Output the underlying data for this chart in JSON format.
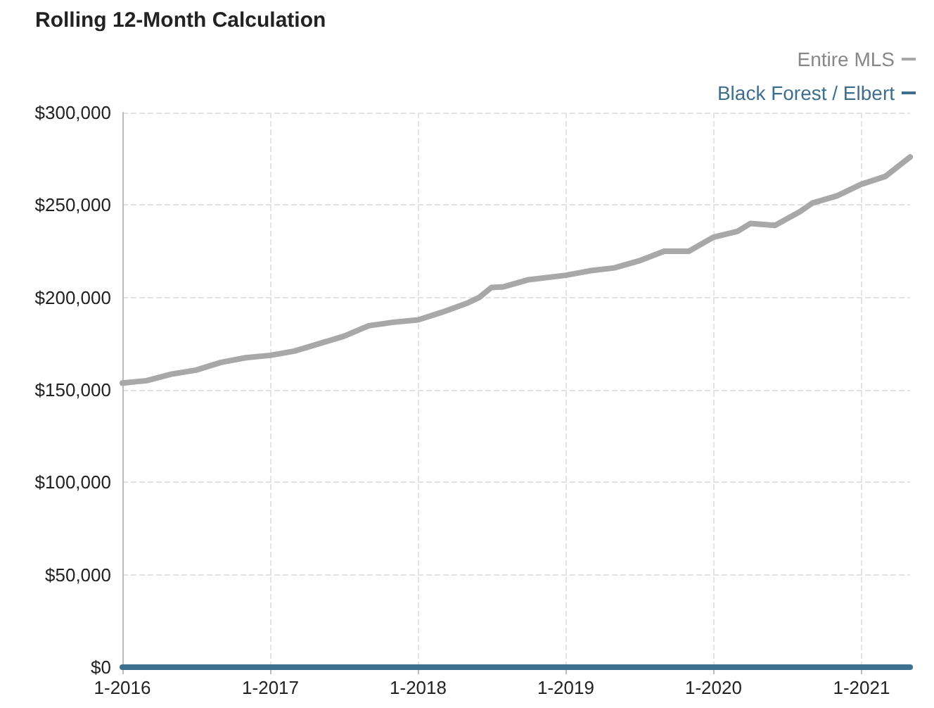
{
  "chart_data": {
    "type": "line",
    "title": "Rolling 12-Month Calculation",
    "x": [
      "2016-01",
      "2016-03",
      "2016-05",
      "2016-07",
      "2016-09",
      "2016-11",
      "2017-01",
      "2017-03",
      "2017-05",
      "2017-07",
      "2017-09",
      "2017-11",
      "2018-01",
      "2018-03",
      "2018-05",
      "2018-06",
      "2018-07",
      "2018-08",
      "2018-10",
      "2019-01",
      "2019-03",
      "2019-05",
      "2019-07",
      "2019-09",
      "2019-11",
      "2020-01",
      "2020-03",
      "2020-04",
      "2020-06",
      "2020-08",
      "2020-09",
      "2020-11",
      "2021-01",
      "2021-03",
      "2021-05"
    ],
    "series": [
      {
        "name": "Entire MLS",
        "color": "#a8a8a8",
        "values": [
          153700,
          155000,
          158500,
          160700,
          164900,
          167400,
          168700,
          171000,
          175000,
          179000,
          184700,
          186600,
          187900,
          192000,
          196800,
          200000,
          205400,
          205800,
          209600,
          212000,
          214400,
          216000,
          219800,
          225000,
          225000,
          232600,
          235800,
          240000,
          239000,
          246300,
          251000,
          254900,
          261300,
          265500,
          276000
        ]
      },
      {
        "name": "Black Forest / Elbert",
        "color": "#3f6f8e",
        "values": [
          0,
          0,
          0,
          0,
          0,
          0,
          0,
          0,
          0,
          0,
          0,
          0,
          0,
          0,
          0,
          0,
          0,
          0,
          0,
          0,
          0,
          0,
          0,
          0,
          0,
          0,
          0,
          0,
          0,
          0,
          0,
          0,
          0,
          0,
          0
        ]
      }
    ],
    "xlim": [
      "2016-01",
      "2021-05"
    ],
    "xticks": [
      {
        "value": "2016-01",
        "label": "1-2016"
      },
      {
        "value": "2017-01",
        "label": "1-2017"
      },
      {
        "value": "2018-01",
        "label": "1-2018"
      },
      {
        "value": "2019-01",
        "label": "1-2019"
      },
      {
        "value": "2020-01",
        "label": "1-2020"
      },
      {
        "value": "2021-01",
        "label": "1-2021"
      }
    ],
    "ylim": [
      0,
      300000
    ],
    "yticks": [
      {
        "value": 0,
        "label": "$0"
      },
      {
        "value": 50000,
        "label": "$50,000"
      },
      {
        "value": 100000,
        "label": "$100,000"
      },
      {
        "value": 150000,
        "label": "$150,000"
      },
      {
        "value": 200000,
        "label": "$200,000"
      },
      {
        "value": 250000,
        "label": "$250,000"
      },
      {
        "value": 300000,
        "label": "$300,000"
      }
    ],
    "grid": true,
    "legend": "top right",
    "marker": "none",
    "line_style": "solid"
  }
}
